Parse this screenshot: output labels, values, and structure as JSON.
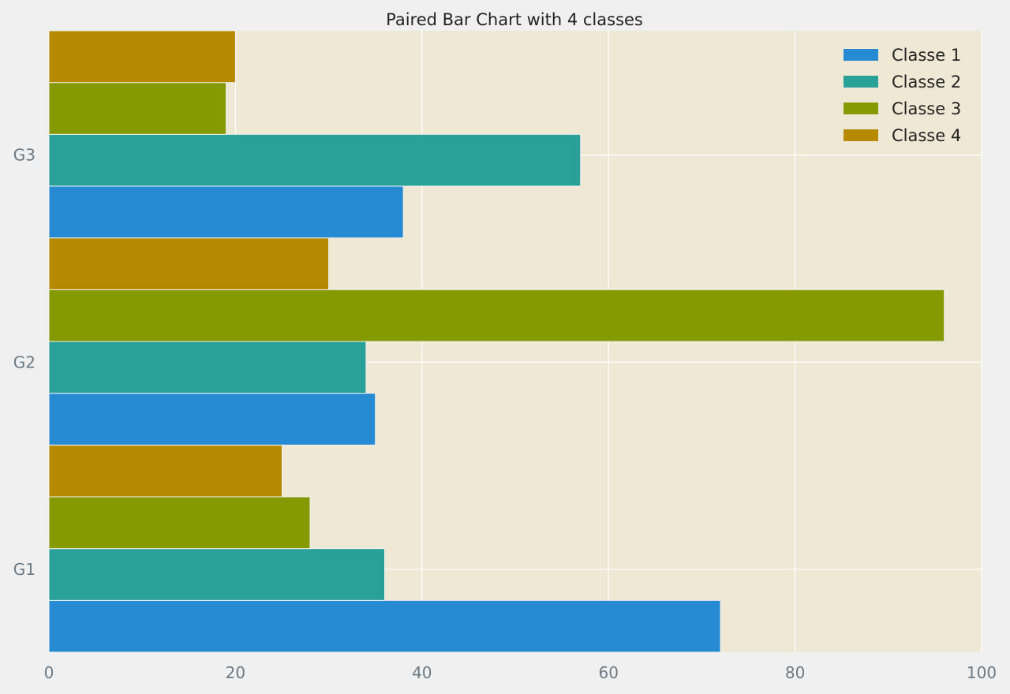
{
  "chart_data": {
    "type": "bar",
    "orientation": "horizontal",
    "title": "Paired Bar Chart with 4 classes",
    "xlabel": "",
    "ylabel": "",
    "categories": [
      "G1",
      "G2",
      "G3"
    ],
    "xlim": [
      0,
      100
    ],
    "xticks": [
      0,
      20,
      40,
      60,
      80,
      100
    ],
    "grid": true,
    "legend_position": "top-right",
    "series": [
      {
        "name": "Classe 1",
        "values": [
          72,
          35,
          38
        ],
        "color": "#268bd2"
      },
      {
        "name": "Classe 2",
        "values": [
          36,
          34,
          57
        ],
        "color": "#2aa198"
      },
      {
        "name": "Classe 3",
        "values": [
          28,
          96,
          19
        ],
        "color": "#859900"
      },
      {
        "name": "Classe 4",
        "values": [
          25,
          30,
          20
        ],
        "color": "#b58900"
      }
    ]
  },
  "style": {
    "background": "#f0f0f0",
    "plot_background": "#eee8d5",
    "grid_color": "#ffffff"
  }
}
